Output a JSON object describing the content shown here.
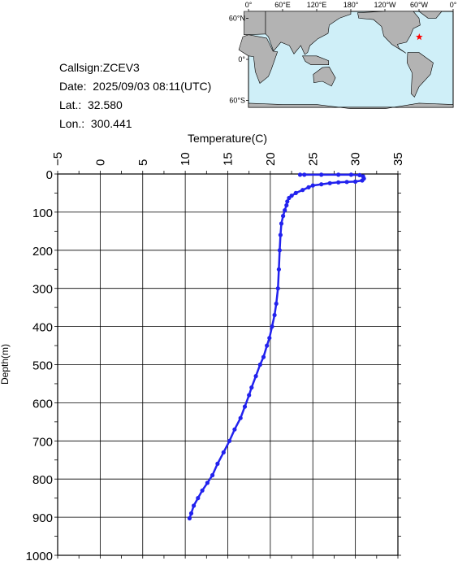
{
  "info": {
    "callsign": "Callsign:ZCEV3",
    "date": "Date:  2025/09/03 08:11(UTC)",
    "lat": "Lat.:  32.580",
    "lon": "Lon.:  300.441"
  },
  "map": {
    "top_labels": [
      "0°",
      "60°E",
      "120°E",
      "180°",
      "120°W",
      "60°W",
      "0°"
    ],
    "left_labels": [
      "60°N",
      "0°",
      "60°S"
    ],
    "ocean_color": "#cfeff8",
    "land_color": "#b3b3b3",
    "marker": {
      "lat": 32.58,
      "lon": 300.441,
      "color": "#ff0000",
      "icon": "star-icon"
    }
  },
  "chart_data": {
    "type": "line",
    "title": "",
    "xlabel": "Temperature(C)",
    "ylabel": "Depth(m)",
    "xlim": [
      -5,
      35
    ],
    "ylim": [
      0,
      1000
    ],
    "x_ticks": [
      -5,
      0,
      5,
      10,
      15,
      20,
      25,
      30,
      35
    ],
    "y_ticks": [
      0,
      100,
      200,
      300,
      400,
      500,
      600,
      700,
      800,
      900,
      1000
    ],
    "grid": true,
    "series_color": "#2222ee",
    "series": [
      {
        "values": [
          {
            "t": 23.5,
            "d": 2
          },
          {
            "t": 24.0,
            "d": 2
          },
          {
            "t": 26.0,
            "d": 2
          },
          {
            "t": 28.0,
            "d": 2
          },
          {
            "t": 29.5,
            "d": 2
          },
          {
            "t": 30.5,
            "d": 3
          },
          {
            "t": 30.9,
            "d": 6
          },
          {
            "t": 31.0,
            "d": 12
          },
          {
            "t": 30.8,
            "d": 17
          },
          {
            "t": 30.0,
            "d": 20
          },
          {
            "t": 29.0,
            "d": 21
          },
          {
            "t": 28.0,
            "d": 22
          },
          {
            "t": 27.0,
            "d": 24
          },
          {
            "t": 26.0,
            "d": 27
          },
          {
            "t": 25.0,
            "d": 30
          },
          {
            "t": 24.5,
            "d": 35
          },
          {
            "t": 23.8,
            "d": 42
          },
          {
            "t": 23.0,
            "d": 50
          },
          {
            "t": 22.5,
            "d": 57
          },
          {
            "t": 22.2,
            "d": 63
          },
          {
            "t": 22.0,
            "d": 72
          },
          {
            "t": 21.9,
            "d": 82
          },
          {
            "t": 21.7,
            "d": 95
          },
          {
            "t": 21.5,
            "d": 110
          },
          {
            "t": 21.3,
            "d": 130
          },
          {
            "t": 21.2,
            "d": 160
          },
          {
            "t": 21.1,
            "d": 200
          },
          {
            "t": 21.0,
            "d": 250
          },
          {
            "t": 20.9,
            "d": 300
          },
          {
            "t": 20.7,
            "d": 340
          },
          {
            "t": 20.5,
            "d": 370
          },
          {
            "t": 20.2,
            "d": 400
          },
          {
            "t": 19.9,
            "d": 430
          },
          {
            "t": 19.6,
            "d": 450
          },
          {
            "t": 19.2,
            "d": 480
          },
          {
            "t": 18.8,
            "d": 500
          },
          {
            "t": 18.3,
            "d": 530
          },
          {
            "t": 17.8,
            "d": 560
          },
          {
            "t": 17.5,
            "d": 580
          },
          {
            "t": 17.0,
            "d": 610
          },
          {
            "t": 16.5,
            "d": 640
          },
          {
            "t": 15.8,
            "d": 670
          },
          {
            "t": 15.2,
            "d": 700
          },
          {
            "t": 14.5,
            "d": 730
          },
          {
            "t": 13.8,
            "d": 760
          },
          {
            "t": 13.2,
            "d": 790
          },
          {
            "t": 12.6,
            "d": 810
          },
          {
            "t": 12.0,
            "d": 830
          },
          {
            "t": 11.5,
            "d": 850
          },
          {
            "t": 11.0,
            "d": 870
          },
          {
            "t": 10.7,
            "d": 890
          },
          {
            "t": 10.5,
            "d": 903
          }
        ]
      }
    ]
  }
}
